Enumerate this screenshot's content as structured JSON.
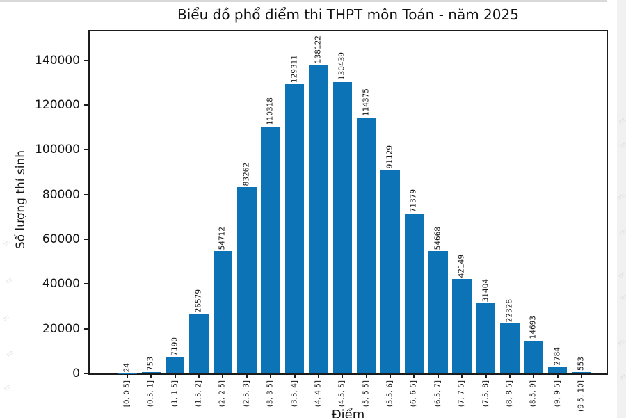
{
  "chart_data": {
    "type": "bar",
    "title": "Biểu đồ phổ điểm thi THPT môn Toán - năm 2025",
    "xlabel": "Điểm",
    "ylabel": "Số lượng thí sinh",
    "categories": [
      "[0, 0.5]",
      "(0.5, 1]",
      "(1, 1.5]",
      "(1.5, 2]",
      "(2, 2.5]",
      "(2.5, 3]",
      "(3, 3.5]",
      "(3.5, 4]",
      "(4, 4.5]",
      "(4.5, 5]",
      "(5, 5.5]",
      "(5.5, 6]",
      "(6, 6.5]",
      "(6.5, 7]",
      "(7, 7.5]",
      "(7.5, 8]",
      "(8, 8.5]",
      "(8.5, 9]",
      "(9, 9.5]",
      "(9.5, 10]"
    ],
    "values": [
      24,
      753,
      7190,
      26579,
      54712,
      83262,
      110318,
      129311,
      138122,
      130439,
      114375,
      91129,
      71379,
      54668,
      42149,
      31404,
      22328,
      14693,
      2784,
      553
    ],
    "yticks": [
      0,
      20000,
      40000,
      60000,
      80000,
      100000,
      120000,
      140000
    ],
    "ylim": [
      0,
      153000
    ],
    "grid": false,
    "legend": null,
    "value_labels_rotation": 90,
    "xtick_rotation": 90,
    "bar_color": "#0b73b6",
    "spine_color": "#1c1c1c"
  }
}
